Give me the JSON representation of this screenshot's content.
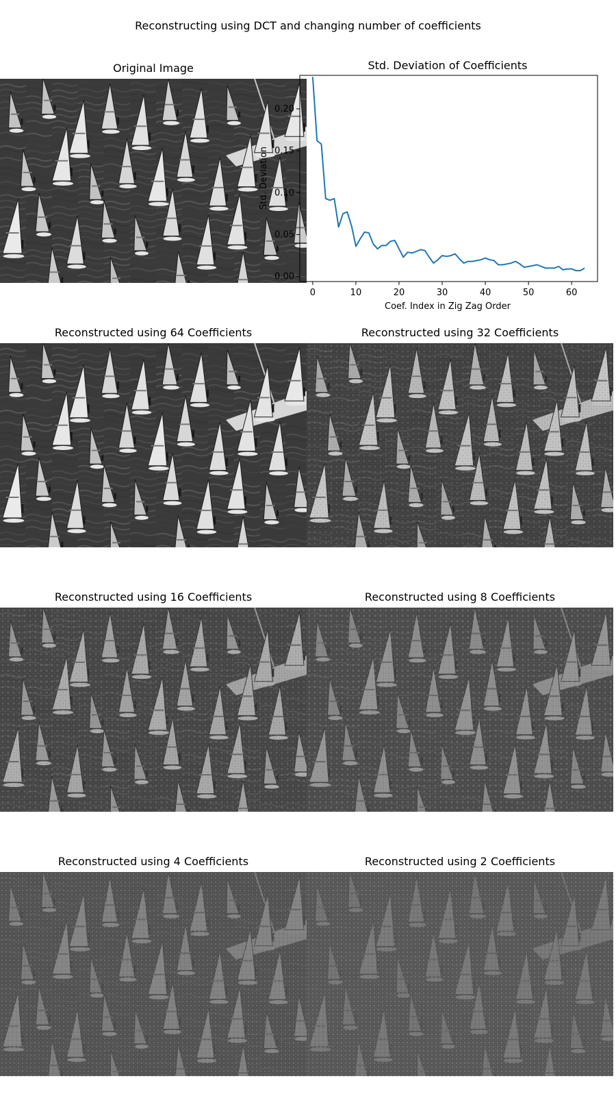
{
  "figure": {
    "suptitle": "Reconstructing using DCT and changing number of coefficients"
  },
  "panels": [
    {
      "title": "Original Image",
      "coefficients": 64,
      "blockiness": 0.0,
      "contrast": 1.0
    },
    {
      "title": "Reconstructed using 64 Coefficients",
      "coefficients": 64,
      "blockiness": 0.0,
      "contrast": 1.0
    },
    {
      "title": "Reconstructed using 32 Coefficients",
      "coefficients": 32,
      "blockiness": 0.15,
      "contrast": 0.85
    },
    {
      "title": "Reconstructed using 16 Coefficients",
      "coefficients": 16,
      "blockiness": 0.3,
      "contrast": 0.7
    },
    {
      "title": "Reconstructed using 8 Coefficients",
      "coefficients": 8,
      "blockiness": 0.5,
      "contrast": 0.55
    },
    {
      "title": "Reconstructed using 4 Coefficients",
      "coefficients": 4,
      "blockiness": 0.75,
      "contrast": 0.45
    },
    {
      "title": "Reconstructed using 2 Coefficients",
      "coefficients": 2,
      "blockiness": 1.0,
      "contrast": 0.35
    }
  ],
  "chart_data": {
    "type": "line",
    "title": "Std. Deviation of Coefficients",
    "xlabel": "Coef. Index in Zig Zag Order",
    "ylabel": "Std. Deviation",
    "xlim": [
      -3,
      66
    ],
    "ylim": [
      -0.006,
      0.24
    ],
    "xticks": [
      0,
      10,
      20,
      30,
      40,
      50,
      60
    ],
    "xtick_labels": [
      "0",
      "10",
      "20",
      "30",
      "40",
      "50",
      "60"
    ],
    "yticks": [
      0.0,
      0.05,
      0.1,
      0.15,
      0.2
    ],
    "ytick_labels": [
      "0.00",
      "0.05",
      "0.10",
      "0.15",
      "0.20"
    ],
    "grid": false,
    "line_color": "#1f77b4",
    "series": [
      {
        "x": [
          0,
          1,
          2,
          3,
          4,
          5,
          6,
          7,
          8,
          9,
          10,
          11,
          12,
          13,
          14,
          15,
          16,
          17,
          18,
          19,
          20,
          21,
          22,
          23,
          24,
          25,
          26,
          27,
          28,
          29,
          30,
          31,
          32,
          33,
          34,
          35,
          36,
          37,
          38,
          39,
          40,
          41,
          42,
          43,
          44,
          45,
          46,
          47,
          48,
          49,
          50,
          51,
          52,
          53,
          54,
          55,
          56,
          57,
          58,
          59,
          60,
          61,
          62,
          63
        ],
        "y": [
          0.238,
          0.162,
          0.158,
          0.093,
          0.091,
          0.093,
          0.059,
          0.075,
          0.077,
          0.06,
          0.036,
          0.045,
          0.053,
          0.052,
          0.039,
          0.033,
          0.037,
          0.037,
          0.042,
          0.043,
          0.033,
          0.023,
          0.029,
          0.028,
          0.03,
          0.032,
          0.031,
          0.023,
          0.016,
          0.02,
          0.025,
          0.024,
          0.025,
          0.027,
          0.021,
          0.016,
          0.018,
          0.018,
          0.019,
          0.02,
          0.022,
          0.02,
          0.019,
          0.014,
          0.014,
          0.015,
          0.016,
          0.018,
          0.015,
          0.011,
          0.012,
          0.013,
          0.014,
          0.012,
          0.01,
          0.01,
          0.01,
          0.012,
          0.008,
          0.009,
          0.009,
          0.007,
          0.007,
          0.01
        ]
      }
    ]
  }
}
